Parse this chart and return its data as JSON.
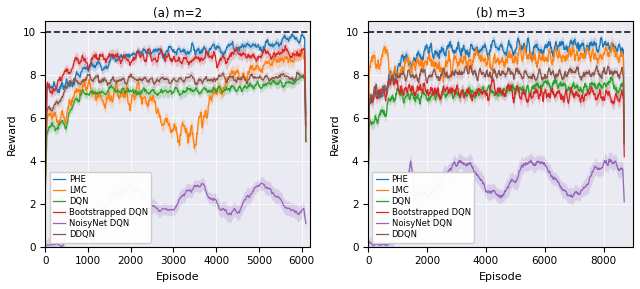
{
  "title_left": "(a) m=2",
  "title_right": "(b) m=3",
  "xlabel": "Episode",
  "ylabel": "Reward",
  "ylim": [
    0,
    10.5
  ],
  "yticks": [
    0,
    2,
    4,
    6,
    8,
    10
  ],
  "xlim_left": [
    0,
    6200
  ],
  "xlim_right": [
    0,
    9000
  ],
  "xticks_left": [
    0,
    1000,
    2000,
    3000,
    4000,
    5000,
    6000
  ],
  "xticks_right": [
    0,
    2000,
    4000,
    6000,
    8000
  ],
  "dashed_line_y": 10,
  "legend_labels": [
    "PHE",
    "LMC",
    "DQN",
    "Bootstrapped DQN",
    "NoisyNet DQN",
    "DDQN"
  ],
  "colors": {
    "PHE": "#1f77b4",
    "LMC": "#ff7f0e",
    "DQN": "#2ca02c",
    "Bootstrapped DQN": "#d62728",
    "NoisyNet DQN": "#9467bd",
    "DDQN": "#8c564b"
  },
  "background_color": "#eaeaf2",
  "seed": 7
}
